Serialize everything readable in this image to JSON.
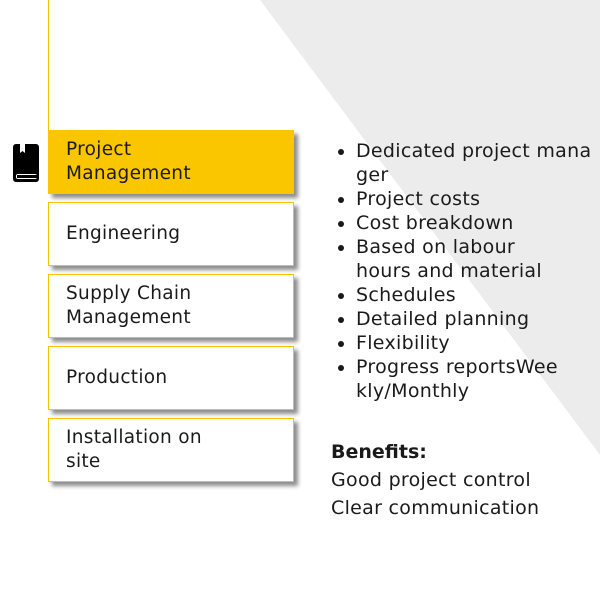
{
  "menu": [
    {
      "label": "Project Management",
      "active": true
    },
    {
      "label": "Engineering",
      "active": false
    },
    {
      "label": "Supply Chain Management",
      "active": false
    },
    {
      "label": "Production",
      "active": false
    },
    {
      "label": "Installation on site",
      "active": false
    }
  ],
  "icon": "book-icon",
  "accent": "#fac600",
  "bullets": [
    "Dedicated project manager",
    "Project costs",
    "Cost breakdown",
    "Based on labour hours and material",
    "Schedules",
    "Detailed planning",
    "Flexibility",
    "Progress reportsWeekly/Monthly"
  ],
  "benefits": {
    "title": "Benefits:",
    "items": [
      "Good project control",
      "Clear communication"
    ]
  }
}
